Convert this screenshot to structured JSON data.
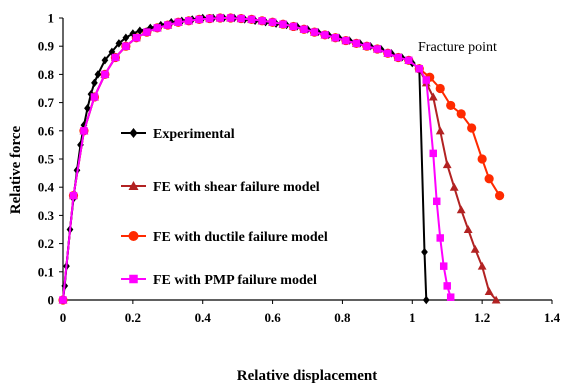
{
  "chart_data": {
    "type": "line",
    "xlabel": "Relative displacement",
    "ylabel": "Relative force",
    "xlim": [
      0,
      1.4
    ],
    "ylim": [
      0,
      1
    ],
    "x_ticks": [
      "0",
      "0.2",
      "0.4",
      "0.6",
      "0.8",
      "1",
      "1.2",
      "1.4"
    ],
    "y_ticks": [
      "0",
      "0.1",
      "0.2",
      "0.3",
      "0.4",
      "0.5",
      "0.6",
      "0.7",
      "0.8",
      "0.9",
      "1"
    ],
    "grid": false,
    "legend_position": "center-left",
    "annotations": [
      {
        "text": "Fracture point",
        "x": 1.0,
        "y": 0.84
      }
    ],
    "series": [
      {
        "name": "Experimental",
        "color": "#000000",
        "marker": "diamond",
        "x": [
          0,
          0.005,
          0.01,
          0.02,
          0.03,
          0.04,
          0.05,
          0.06,
          0.07,
          0.08,
          0.09,
          0.1,
          0.12,
          0.14,
          0.16,
          0.18,
          0.2,
          0.22,
          0.25,
          0.28,
          0.31,
          0.34,
          0.37,
          0.4,
          0.43,
          0.46,
          0.49,
          0.52,
          0.55,
          0.58,
          0.61,
          0.64,
          0.67,
          0.7,
          0.73,
          0.76,
          0.79,
          0.82,
          0.85,
          0.88,
          0.91,
          0.94,
          0.97,
          1.0,
          1.02,
          1.035,
          1.04
        ],
        "y": [
          0,
          0.05,
          0.12,
          0.25,
          0.36,
          0.46,
          0.55,
          0.62,
          0.68,
          0.73,
          0.77,
          0.8,
          0.85,
          0.88,
          0.91,
          0.93,
          0.945,
          0.955,
          0.965,
          0.975,
          0.985,
          0.99,
          0.995,
          1.0,
          1.0,
          1.0,
          1.0,
          0.995,
          0.99,
          0.985,
          0.98,
          0.975,
          0.97,
          0.96,
          0.95,
          0.94,
          0.93,
          0.92,
          0.91,
          0.9,
          0.89,
          0.875,
          0.86,
          0.84,
          0.82,
          0.17,
          0.0
        ]
      },
      {
        "name": "FE with shear failure model",
        "color": "#b22222",
        "marker": "triangle",
        "x": [
          0,
          0.03,
          0.06,
          0.09,
          0.12,
          0.15,
          0.18,
          0.21,
          0.24,
          0.27,
          0.3,
          0.33,
          0.36,
          0.39,
          0.42,
          0.45,
          0.48,
          0.51,
          0.54,
          0.57,
          0.6,
          0.63,
          0.66,
          0.69,
          0.72,
          0.75,
          0.78,
          0.81,
          0.84,
          0.87,
          0.9,
          0.93,
          0.96,
          0.99,
          1.02,
          1.04,
          1.06,
          1.08,
          1.1,
          1.12,
          1.14,
          1.16,
          1.18,
          1.2,
          1.22,
          1.24
        ],
        "y": [
          0,
          0.37,
          0.6,
          0.72,
          0.8,
          0.86,
          0.9,
          0.93,
          0.95,
          0.965,
          0.975,
          0.985,
          0.99,
          0.995,
          0.998,
          1.0,
          1.0,
          0.998,
          0.995,
          0.99,
          0.985,
          0.978,
          0.97,
          0.96,
          0.95,
          0.94,
          0.93,
          0.92,
          0.91,
          0.9,
          0.89,
          0.875,
          0.86,
          0.85,
          0.82,
          0.77,
          0.72,
          0.6,
          0.48,
          0.4,
          0.32,
          0.25,
          0.18,
          0.12,
          0.03,
          0.0
        ]
      },
      {
        "name": "FE with ductile failure model",
        "color": "#ff2a00",
        "marker": "circle",
        "x": [
          0,
          0.03,
          0.06,
          0.09,
          0.12,
          0.15,
          0.18,
          0.21,
          0.24,
          0.27,
          0.3,
          0.33,
          0.36,
          0.39,
          0.42,
          0.45,
          0.48,
          0.51,
          0.54,
          0.57,
          0.6,
          0.63,
          0.66,
          0.69,
          0.72,
          0.75,
          0.78,
          0.81,
          0.84,
          0.87,
          0.9,
          0.93,
          0.96,
          0.99,
          1.02,
          1.05,
          1.08,
          1.11,
          1.14,
          1.17,
          1.2,
          1.22,
          1.25
        ],
        "y": [
          0,
          0.37,
          0.6,
          0.72,
          0.8,
          0.86,
          0.9,
          0.93,
          0.95,
          0.965,
          0.975,
          0.985,
          0.99,
          0.995,
          0.998,
          1.0,
          1.0,
          0.998,
          0.995,
          0.99,
          0.985,
          0.978,
          0.97,
          0.96,
          0.95,
          0.94,
          0.93,
          0.92,
          0.91,
          0.9,
          0.89,
          0.875,
          0.86,
          0.85,
          0.82,
          0.79,
          0.75,
          0.69,
          0.66,
          0.61,
          0.5,
          0.43,
          0.37
        ]
      },
      {
        "name": "FE with PMP failure model",
        "color": "#ff00ff",
        "marker": "square",
        "x": [
          0,
          0.03,
          0.06,
          0.09,
          0.12,
          0.15,
          0.18,
          0.21,
          0.24,
          0.27,
          0.3,
          0.33,
          0.36,
          0.39,
          0.42,
          0.45,
          0.48,
          0.51,
          0.54,
          0.57,
          0.6,
          0.63,
          0.66,
          0.69,
          0.72,
          0.75,
          0.78,
          0.81,
          0.84,
          0.87,
          0.9,
          0.93,
          0.96,
          0.99,
          1.02,
          1.04,
          1.06,
          1.07,
          1.08,
          1.09,
          1.1,
          1.11
        ],
        "y": [
          0,
          0.37,
          0.6,
          0.72,
          0.8,
          0.86,
          0.9,
          0.93,
          0.95,
          0.965,
          0.975,
          0.985,
          0.99,
          0.995,
          0.998,
          1.0,
          1.0,
          0.998,
          0.995,
          0.99,
          0.985,
          0.978,
          0.97,
          0.96,
          0.95,
          0.94,
          0.93,
          0.92,
          0.91,
          0.9,
          0.89,
          0.875,
          0.86,
          0.85,
          0.82,
          0.78,
          0.52,
          0.35,
          0.22,
          0.12,
          0.05,
          0.01
        ]
      }
    ]
  }
}
